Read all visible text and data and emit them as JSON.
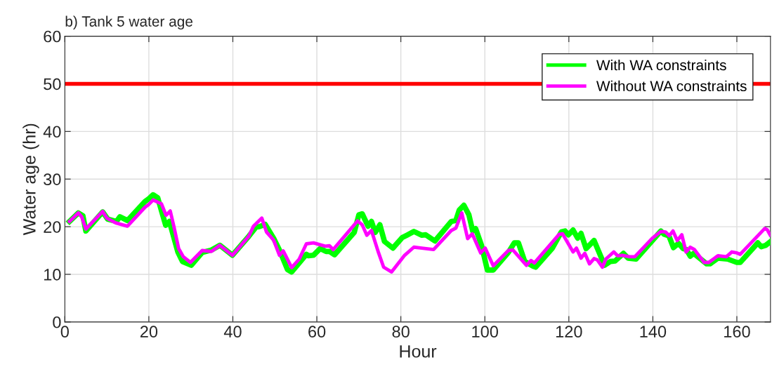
{
  "chart_data": {
    "type": "line",
    "title": "b) Tank 5 water age",
    "xlabel": "Hour",
    "ylabel": "Water age (hr)",
    "xlim": [
      0,
      168
    ],
    "ylim": [
      0,
      60
    ],
    "xticks": [
      0,
      20,
      40,
      60,
      80,
      100,
      120,
      140,
      160
    ],
    "yticks": [
      0,
      10,
      20,
      30,
      40,
      50,
      60
    ],
    "grid": true,
    "legend": "top right",
    "line_style": "solid",
    "marker": "none",
    "ref_lines": [
      {
        "axis": "y",
        "value": 50,
        "color": "#ff0000"
      }
    ],
    "series": [
      {
        "name": "With WA constraints",
        "color": "#00ff00",
        "x": [
          1.1,
          3.2,
          4.3,
          5,
          9,
          10.2,
          12.3,
          13.1,
          14.9,
          19.1,
          19.9,
          21,
          22.1,
          24,
          24.9,
          26.9,
          28,
          30.1,
          32.7,
          34.9,
          36.9,
          39.9,
          43.8,
          45.5,
          46.3,
          47.7,
          49.7,
          51.1,
          53,
          54,
          57.5,
          58,
          59.2,
          60.8,
          62.2,
          63,
          64.2,
          68.9,
          70,
          70.8,
          72.2,
          73,
          73.9,
          75,
          76.1,
          78.1,
          80.3,
          81.4,
          83.1,
          85,
          85.9,
          88.1,
          92,
          93.1,
          93.9,
          95,
          96.2,
          97.1,
          97.8,
          99.2,
          100.6,
          102,
          105.6,
          107,
          108,
          109.5,
          111.5,
          112.1,
          116,
          118.2,
          119.1,
          119.9,
          121,
          122.1,
          122.9,
          124.1,
          126,
          128.5,
          129.9,
          131,
          133,
          134.1,
          136,
          141.9,
          142.7,
          143.8,
          144.9,
          146.1,
          147.2,
          148,
          148.9,
          149.7,
          152.8,
          153.6,
          155.5,
          157.8,
          160,
          160.8,
          165,
          165.8,
          166.9,
          167.9
        ],
        "values": [
          21.1,
          22.9,
          22.3,
          19.1,
          23.1,
          21.6,
          21.1,
          22.1,
          21.3,
          25.3,
          25.8,
          26.7,
          26.1,
          20.3,
          21.1,
          14.7,
          12.7,
          11.9,
          14.6,
          15.1,
          16.1,
          14,
          18,
          19.9,
          20,
          20.5,
          17.6,
          15.1,
          11,
          10.5,
          14.2,
          13.9,
          14,
          15.4,
          14.8,
          14.8,
          14.1,
          18.8,
          22.5,
          22.7,
          20.1,
          21.1,
          18.8,
          20.4,
          16.9,
          15.5,
          17.7,
          18.2,
          19,
          18.2,
          18.3,
          17,
          21.1,
          21.3,
          23.5,
          24.5,
          22.5,
          19.1,
          19.6,
          16.1,
          10.9,
          10.9,
          14.6,
          16.6,
          16.6,
          12.7,
          11.7,
          11.5,
          15.4,
          18.9,
          19.1,
          18.3,
          19.3,
          17.6,
          18.6,
          15.4,
          17.1,
          11.9,
          12.7,
          12.8,
          14.4,
          13.4,
          13.2,
          19.1,
          18.4,
          18.1,
          15.6,
          16.5,
          15.4,
          15.2,
          13.8,
          14.4,
          12.2,
          12.2,
          13.4,
          13.2,
          12.5,
          12.5,
          16.6,
          15.8,
          16.1,
          16.8
        ]
      },
      {
        "name": "Without WA constraints",
        "color": "#ff00ff",
        "x": [
          1.1,
          3.2,
          4,
          5,
          9,
          10,
          12.1,
          14.9,
          19.1,
          19.9,
          21,
          23,
          24.1,
          25.1,
          26,
          27.1,
          28.2,
          29.9,
          32.7,
          34.9,
          36.9,
          39.9,
          43.8,
          44.9,
          46.9,
          48,
          49.7,
          51.1,
          52,
          54,
          55.8,
          57.5,
          59.2,
          62,
          63,
          63.9,
          69.7,
          70.8,
          71.9,
          73,
          74.7,
          75.9,
          77.8,
          80.9,
          83.1,
          85,
          87.8,
          92,
          93.1,
          94.5,
          95.9,
          97,
          99,
          100.1,
          102,
          105.6,
          106.7,
          109.9,
          111,
          111.8,
          117.7,
          118.5,
          121,
          121.8,
          122.9,
          123.8,
          124.9,
          126,
          126.8,
          128,
          128.8,
          130.7,
          131.6,
          132.7,
          134.4,
          135.7,
          139.9,
          141.9,
          143,
          143.9,
          144.8,
          145.8,
          146.9,
          147.9,
          148.9,
          149.9,
          152.2,
          153.3,
          155.5,
          157.5,
          158.8,
          160,
          160.8,
          166.6,
          167.2,
          167.9
        ],
        "values": [
          21.1,
          22.9,
          22.1,
          19.5,
          23.2,
          21.8,
          20.8,
          20.1,
          24.1,
          24.6,
          25.6,
          24.8,
          22.4,
          23.3,
          19.9,
          15.4,
          13.7,
          12.5,
          15,
          14.8,
          16.1,
          14,
          18,
          20.1,
          21.8,
          18.9,
          17.2,
          14,
          14.9,
          11.4,
          13.2,
          16.4,
          16.6,
          15.9,
          16,
          15.2,
          21.2,
          20.4,
          18.2,
          19.2,
          14.5,
          11.5,
          10.5,
          14,
          15.7,
          15.5,
          15.2,
          19.2,
          19.7,
          22.9,
          17.5,
          18.5,
          14.5,
          15.5,
          11.8,
          15,
          15.1,
          11.9,
          12.9,
          12.4,
          18.4,
          18.5,
          14.7,
          15.5,
          13.4,
          14.4,
          12.2,
          13.3,
          13,
          11.5,
          13.2,
          14.7,
          13.9,
          14,
          13.7,
          13.7,
          17.6,
          19,
          18.9,
          18.1,
          19.1,
          17.1,
          18.3,
          14.7,
          15.7,
          15.2,
          12.5,
          12.5,
          13.9,
          13.7,
          14.7,
          14.5,
          14.2,
          19.6,
          19.4,
          18.3
        ]
      }
    ]
  }
}
